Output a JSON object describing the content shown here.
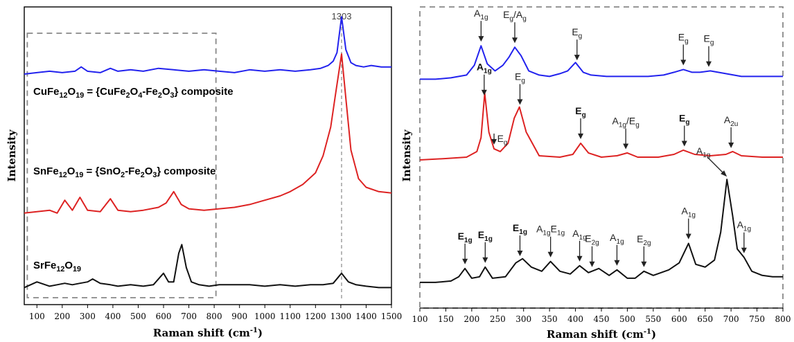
{
  "chart_data": [
    {
      "type": "line",
      "ylabel": "Intensity",
      "xlabel": "Raman shift (cm",
      "xlabel_sup": "-1",
      "xlabel_close": ")",
      "xlim": [
        50,
        1500
      ],
      "ylim": [
        0,
        1
      ],
      "xticks": [
        100,
        200,
        300,
        400,
        500,
        600,
        700,
        800,
        900,
        1000,
        1100,
        1200,
        1300,
        1400,
        1500
      ],
      "annotation": {
        "text": "1303",
        "x": 1303
      },
      "inset_box": {
        "x_from": 62,
        "x_to": 807
      },
      "series": [
        {
          "label_parts": [
            "CuFe",
            "12",
            "O",
            "19",
            " = {CuFe",
            "2",
            "O",
            "4",
            "-Fe",
            "2",
            "O",
            "3",
            "} composite"
          ],
          "color": "#2222ee",
          "x": [
            50,
            100,
            150,
            200,
            250,
            275,
            300,
            350,
            390,
            420,
            470,
            520,
            580,
            640,
            700,
            760,
            820,
            880,
            940,
            1000,
            1060,
            1120,
            1180,
            1220,
            1250,
            1270,
            1285,
            1303,
            1320,
            1340,
            1360,
            1390,
            1420,
            1460,
            1500
          ],
          "y": [
            0.785,
            0.79,
            0.795,
            0.79,
            0.795,
            0.81,
            0.795,
            0.79,
            0.805,
            0.795,
            0.8,
            0.795,
            0.805,
            0.8,
            0.795,
            0.8,
            0.795,
            0.79,
            0.8,
            0.795,
            0.8,
            0.795,
            0.8,
            0.805,
            0.815,
            0.83,
            0.86,
            0.985,
            0.87,
            0.825,
            0.815,
            0.81,
            0.815,
            0.81,
            0.81
          ]
        },
        {
          "label_parts": [
            "SnFe",
            "12",
            "O",
            "19",
            " = {SnO",
            "2",
            "-Fe",
            "2",
            "O",
            "3",
            "} composite"
          ],
          "color": "#dd2222",
          "x": [
            50,
            100,
            150,
            180,
            210,
            240,
            270,
            300,
            350,
            390,
            420,
            470,
            520,
            580,
            610,
            640,
            670,
            700,
            760,
            820,
            880,
            940,
            1000,
            1060,
            1100,
            1150,
            1200,
            1230,
            1260,
            1280,
            1303,
            1320,
            1340,
            1370,
            1400,
            1450,
            1500
          ],
          "y": [
            0.3,
            0.305,
            0.31,
            0.3,
            0.345,
            0.31,
            0.355,
            0.31,
            0.305,
            0.35,
            0.31,
            0.305,
            0.31,
            0.32,
            0.335,
            0.375,
            0.33,
            0.315,
            0.31,
            0.315,
            0.32,
            0.33,
            0.345,
            0.36,
            0.375,
            0.4,
            0.44,
            0.5,
            0.6,
            0.72,
            0.855,
            0.7,
            0.52,
            0.42,
            0.39,
            0.375,
            0.37
          ]
        },
        {
          "label_parts": [
            "SrFe",
            "12",
            "O",
            "19"
          ],
          "color": "#111111",
          "x": [
            50,
            100,
            150,
            180,
            210,
            240,
            270,
            300,
            320,
            350,
            390,
            420,
            470,
            520,
            560,
            600,
            620,
            640,
            660,
            672,
            690,
            710,
            740,
            780,
            820,
            880,
            940,
            1000,
            1060,
            1120,
            1180,
            1230,
            1270,
            1303,
            1330,
            1360,
            1400,
            1450,
            1500
          ],
          "y": [
            0.04,
            0.06,
            0.045,
            0.05,
            0.055,
            0.05,
            0.055,
            0.06,
            0.07,
            0.055,
            0.05,
            0.045,
            0.05,
            0.045,
            0.05,
            0.09,
            0.06,
            0.06,
            0.16,
            0.19,
            0.11,
            0.06,
            0.05,
            0.045,
            0.05,
            0.05,
            0.05,
            0.045,
            0.05,
            0.045,
            0.05,
            0.05,
            0.055,
            0.09,
            0.06,
            0.05,
            0.045,
            0.04,
            0.04
          ]
        }
      ]
    },
    {
      "type": "line",
      "ylabel": "Intensity",
      "xlabel": "Raman shift (cm",
      "xlabel_sup": "-1",
      "xlabel_close": ")",
      "xlim": [
        100,
        800
      ],
      "ylim": [
        0,
        1
      ],
      "xticks": [
        100,
        150,
        200,
        250,
        300,
        350,
        400,
        450,
        500,
        550,
        600,
        650,
        700,
        750,
        800
      ],
      "series": [
        {
          "color": "#2222ee",
          "x": [
            100,
            130,
            160,
            190,
            205,
            218,
            230,
            245,
            260,
            272,
            283,
            295,
            310,
            330,
            350,
            370,
            385,
            400,
            415,
            430,
            460,
            500,
            540,
            570,
            590,
            608,
            625,
            640,
            660,
            690,
            720,
            760,
            800
          ],
          "y": [
            0.79,
            0.79,
            0.795,
            0.805,
            0.84,
            0.91,
            0.845,
            0.82,
            0.84,
            0.87,
            0.905,
            0.875,
            0.82,
            0.805,
            0.8,
            0.81,
            0.82,
            0.85,
            0.815,
            0.805,
            0.8,
            0.8,
            0.8,
            0.805,
            0.815,
            0.825,
            0.815,
            0.815,
            0.82,
            0.81,
            0.8,
            0.8,
            0.8
          ]
        },
        {
          "color": "#dd2222",
          "x": [
            100,
            150,
            190,
            210,
            218,
            225,
            233,
            243,
            255,
            270,
            282,
            292,
            305,
            330,
            370,
            395,
            410,
            425,
            450,
            480,
            500,
            520,
            560,
            590,
            608,
            630,
            660,
            690,
            703,
            720,
            760,
            800
          ],
          "y": [
            0.5,
            0.505,
            0.51,
            0.53,
            0.58,
            0.74,
            0.6,
            0.54,
            0.53,
            0.56,
            0.65,
            0.69,
            0.6,
            0.515,
            0.51,
            0.52,
            0.56,
            0.525,
            0.51,
            0.515,
            0.525,
            0.51,
            0.51,
            0.52,
            0.535,
            0.52,
            0.515,
            0.52,
            0.53,
            0.515,
            0.51,
            0.51
          ]
        },
        {
          "color": "#111111",
          "x": [
            100,
            130,
            160,
            175,
            187,
            200,
            215,
            226,
            240,
            265,
            285,
            298,
            315,
            335,
            352,
            370,
            390,
            408,
            425,
            445,
            465,
            480,
            500,
            515,
            532,
            550,
            580,
            600,
            618,
            632,
            650,
            668,
            680,
            692,
            703,
            712,
            725,
            740,
            760,
            780,
            800
          ],
          "y": [
            0.06,
            0.06,
            0.065,
            0.08,
            0.11,
            0.075,
            0.08,
            0.115,
            0.075,
            0.08,
            0.13,
            0.145,
            0.115,
            0.1,
            0.135,
            0.1,
            0.09,
            0.12,
            0.095,
            0.11,
            0.085,
            0.105,
            0.075,
            0.075,
            0.1,
            0.085,
            0.105,
            0.13,
            0.2,
            0.125,
            0.115,
            0.14,
            0.24,
            0.43,
            0.3,
            0.18,
            0.15,
            0.1,
            0.085,
            0.08,
            0.08
          ]
        }
      ],
      "annotations": [
        {
          "x": 218,
          "series": 0,
          "parts": [
            "A",
            "1g"
          ],
          "style": "normal"
        },
        {
          "x": 283,
          "series": 0,
          "parts": [
            "E",
            "g",
            "/A",
            "g"
          ],
          "style": "normal"
        },
        {
          "x": 403,
          "series": 0,
          "parts": [
            "E",
            "g"
          ],
          "style": "normal"
        },
        {
          "x": 608,
          "series": 0,
          "parts": [
            "E",
            "g"
          ],
          "style": "normal"
        },
        {
          "x": 657,
          "series": 0,
          "parts": [
            "E",
            "g"
          ],
          "style": "normal"
        },
        {
          "x": 224,
          "series": 1,
          "parts": [
            "A",
            "1g"
          ],
          "style": "bold"
        },
        {
          "x": 243,
          "series": 1,
          "parts": [
            "E",
            "g"
          ],
          "style": "normal",
          "offset": "low"
        },
        {
          "x": 293,
          "series": 1,
          "parts": [
            "E",
            "g"
          ],
          "style": "normal"
        },
        {
          "x": 410,
          "series": 1,
          "parts": [
            "E",
            "g"
          ],
          "style": "bold"
        },
        {
          "x": 497,
          "series": 1,
          "parts": [
            "A",
            "1g",
            "/E",
            "g"
          ],
          "style": "normal"
        },
        {
          "x": 610,
          "series": 1,
          "parts": [
            "E",
            "g"
          ],
          "style": "bold"
        },
        {
          "x": 700,
          "series": 1,
          "parts": [
            "A",
            "2u"
          ],
          "style": "normal"
        },
        {
          "x": 187,
          "series": 2,
          "parts": [
            "E",
            "1g"
          ],
          "style": "bold"
        },
        {
          "x": 226,
          "series": 2,
          "parts": [
            "E",
            "1g"
          ],
          "style": "bold"
        },
        {
          "x": 293,
          "series": 2,
          "parts": [
            "E",
            "1g"
          ],
          "style": "bold"
        },
        {
          "x": 352,
          "series": 2,
          "parts": [
            "A",
            "1g",
            "E",
            "1g"
          ],
          "style": "normal"
        },
        {
          "x": 408,
          "series": 2,
          "parts": [
            "A",
            "1g"
          ],
          "style": "normal"
        },
        {
          "x": 432,
          "series": 2,
          "parts": [
            "E",
            "2g"
          ],
          "style": "normal"
        },
        {
          "x": 480,
          "series": 2,
          "parts": [
            "A",
            "1g"
          ],
          "style": "normal"
        },
        {
          "x": 532,
          "series": 2,
          "parts": [
            "E",
            "2g"
          ],
          "style": "normal"
        },
        {
          "x": 618,
          "series": 2,
          "parts": [
            "A",
            "1g"
          ],
          "style": "normal"
        },
        {
          "x": 692,
          "series": 2,
          "parts": [
            "A",
            "1g"
          ],
          "style": "normal",
          "diagonal": true
        },
        {
          "x": 725,
          "series": 2,
          "parts": [
            "A",
            "1g"
          ],
          "style": "normal"
        }
      ]
    }
  ]
}
